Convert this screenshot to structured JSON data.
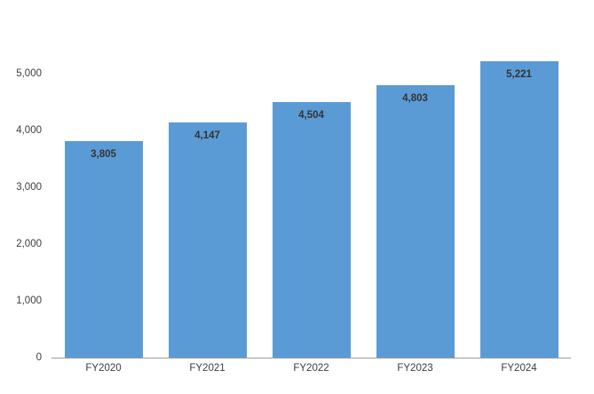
{
  "chart_data": {
    "type": "bar",
    "title": "",
    "xlabel": "",
    "ylabel": "",
    "categories": [
      "FY2020",
      "FY2021",
      "FY2022",
      "FY2023",
      "FY2024"
    ],
    "values": [
      3805,
      4147,
      4504,
      4803,
      5221
    ],
    "value_labels": [
      "3,805",
      "4,147",
      "4,504",
      "4,803",
      "5,221"
    ],
    "ylim": [
      0,
      5000
    ],
    "yticks": [
      0,
      1000,
      2000,
      3000,
      4000,
      5000
    ],
    "ytick_labels": [
      "0",
      "1,000",
      "2,000",
      "3,000",
      "4,000",
      "5,000"
    ],
    "grid": false,
    "legend": null,
    "colors": {
      "bar_fill": "#5B9BD5",
      "value_label_text": "#333333",
      "tick_label_text": "#3d3d3d",
      "axis_line": "#9c9c9c",
      "background": "#ffffff"
    }
  }
}
